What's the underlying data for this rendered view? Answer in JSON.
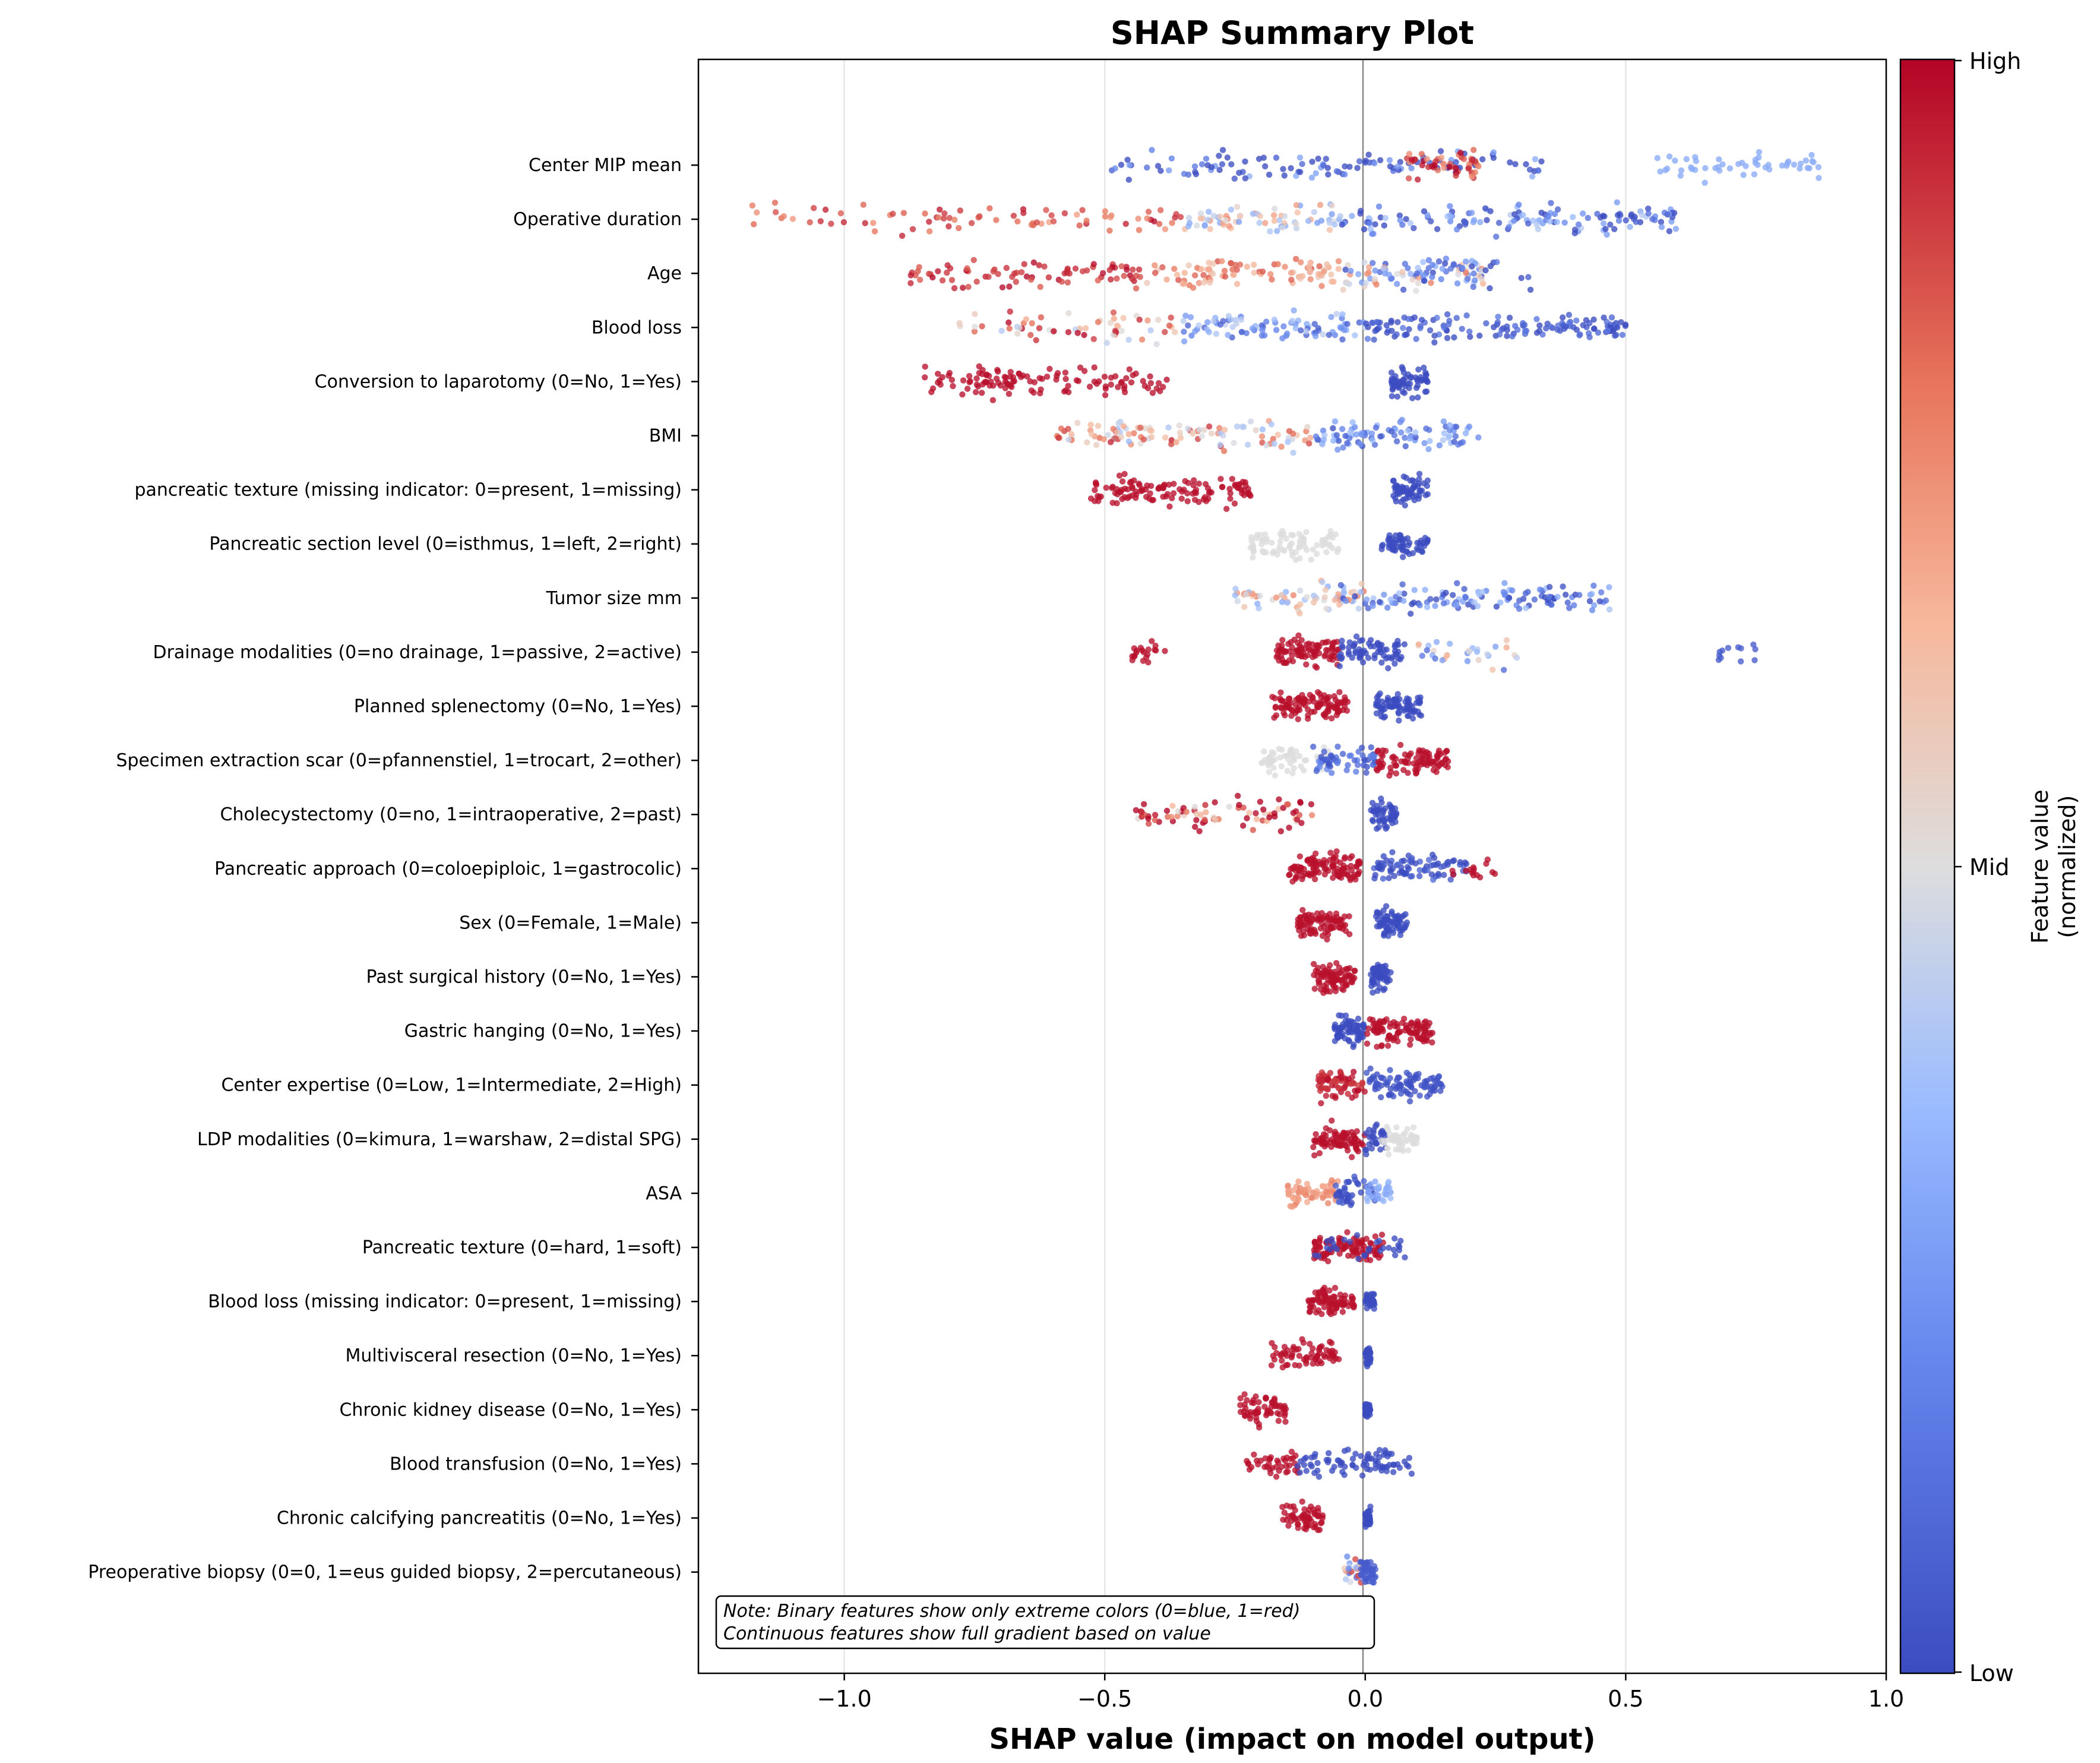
{
  "chart_data": {
    "type": "scatter",
    "title": "SHAP Summary Plot",
    "xlabel": "SHAP value (impact on model output)",
    "xlim": [
      -1.28,
      1.0
    ],
    "xticks": [
      -1.0,
      -0.5,
      0.0,
      0.5,
      1.0
    ],
    "xtick_labels": [
      "−1.0",
      "−0.5",
      "0.0",
      "0.5",
      "1.0"
    ],
    "grid": "vertical",
    "colorbar": {
      "label_line1": "Feature value",
      "label_line2": "(normalized)",
      "ticks": [
        "Low",
        "Mid",
        "High"
      ],
      "colormap": "coolwarm",
      "low_color": "#3b4cc0",
      "mid_color": "#dddddd",
      "high_color": "#b40426"
    },
    "note_lines": [
      "Note: Binary features show only extreme colors (0=blue, 1=red)",
      "Continuous features show full gradient based on value"
    ],
    "features": [
      {
        "name": "Center MIP mean",
        "clusters": [
          [
            -0.49,
            0.34,
            0.02,
            0.3,
            120
          ],
          [
            0.08,
            0.22,
            0.9,
            0.18,
            50
          ],
          [
            0.56,
            0.88,
            0.3,
            0.0,
            50
          ]
        ]
      },
      {
        "name": "Operative duration",
        "clusters": [
          [
            -1.18,
            -0.35,
            0.85,
            0.15,
            80
          ],
          [
            -0.35,
            -0.05,
            0.5,
            0.25,
            70
          ],
          [
            -0.05,
            0.6,
            0.12,
            0.3,
            140
          ]
        ]
      },
      {
        "name": "Age",
        "clusters": [
          [
            -0.88,
            -0.42,
            0.92,
            0.08,
            80
          ],
          [
            -0.42,
            -0.05,
            0.72,
            0.15,
            90
          ],
          [
            -0.05,
            0.23,
            0.4,
            0.4,
            80
          ],
          [
            0.1,
            0.32,
            0.1,
            0.2,
            30
          ]
        ]
      },
      {
        "name": "Blood loss",
        "clusters": [
          [
            -0.78,
            -0.35,
            0.7,
            0.3,
            60
          ],
          [
            -0.35,
            0.0,
            0.25,
            0.2,
            90
          ],
          [
            0.0,
            0.5,
            0.05,
            0.1,
            140
          ]
        ]
      },
      {
        "name": "Conversion to laparotomy (0=No, 1=Yes)",
        "clusters": [
          [
            -0.85,
            -0.38,
            0.98,
            0.0,
            120
          ],
          [
            0.05,
            0.12,
            0.0,
            0.0,
            60
          ]
        ]
      },
      {
        "name": "BMI",
        "clusters": [
          [
            -0.6,
            -0.1,
            0.65,
            0.3,
            110
          ],
          [
            -0.1,
            0.22,
            0.2,
            0.2,
            90
          ]
        ]
      },
      {
        "name": "pancreatic texture (missing indicator: 0=present, 1=missing)",
        "clusters": [
          [
            -0.53,
            -0.22,
            0.98,
            0.0,
            120
          ],
          [
            0.05,
            0.12,
            0.0,
            0.0,
            60
          ]
        ]
      },
      {
        "name": "Pancreatic section level (0=isthmus, 1=left, 2=right)",
        "clusters": [
          [
            -0.22,
            -0.05,
            0.5,
            0.0,
            80
          ],
          [
            0.03,
            0.12,
            0.0,
            0.0,
            60
          ]
        ]
      },
      {
        "name": "Tumor size mm",
        "clusters": [
          [
            -0.25,
            0.0,
            0.55,
            0.25,
            70
          ],
          [
            -0.05,
            0.48,
            0.15,
            0.25,
            120
          ]
        ]
      },
      {
        "name": "Drainage modalities (0=no drainage, 1=passive, 2=active)",
        "clusters": [
          [
            -0.45,
            -0.38,
            0.98,
            0.0,
            20
          ],
          [
            -0.17,
            -0.05,
            0.98,
            0.0,
            90
          ],
          [
            -0.05,
            0.08,
            0.0,
            0.0,
            70
          ],
          [
            0.1,
            0.3,
            0.4,
            0.3,
            30
          ],
          [
            0.66,
            0.75,
            0.05,
            0.0,
            12
          ]
        ]
      },
      {
        "name": "Planned splenectomy (0=No, 1=Yes)",
        "clusters": [
          [
            -0.18,
            -0.03,
            0.98,
            0.0,
            110
          ],
          [
            0.02,
            0.11,
            0.0,
            0.0,
            80
          ]
        ]
      },
      {
        "name": "Specimen extraction scar (0=pfannenstiel, 1=trocart, 2=other)",
        "clusters": [
          [
            -0.2,
            -0.07,
            0.5,
            0.0,
            60
          ],
          [
            -0.1,
            0.02,
            0.1,
            0.1,
            60
          ],
          [
            0.02,
            0.16,
            0.98,
            0.0,
            90
          ]
        ]
      },
      {
        "name": "Cholecystectomy (0=no, 1=intraoperative, 2=past)",
        "clusters": [
          [
            -0.44,
            -0.1,
            0.9,
            0.4,
            80
          ],
          [
            0.01,
            0.06,
            0.0,
            0.0,
            50
          ]
        ]
      },
      {
        "name": "Pancreatic approach (0=coloepiploic, 1=gastrocolic)",
        "clusters": [
          [
            -0.15,
            -0.01,
            0.98,
            0.0,
            110
          ],
          [
            0.0,
            0.2,
            0.0,
            0.1,
            80
          ],
          [
            0.16,
            0.25,
            0.98,
            0.0,
            15
          ]
        ]
      },
      {
        "name": "Sex (0=Female, 1=Male)",
        "clusters": [
          [
            -0.13,
            -0.03,
            0.98,
            0.0,
            90
          ],
          [
            0.02,
            0.08,
            0.0,
            0.0,
            70
          ]
        ]
      },
      {
        "name": "Past surgical history (0=No, 1=Yes)",
        "clusters": [
          [
            -0.1,
            -0.02,
            0.98,
            0.0,
            80
          ],
          [
            0.01,
            0.05,
            0.0,
            0.0,
            60
          ]
        ]
      },
      {
        "name": "Gastric hanging (0=No, 1=Yes)",
        "clusters": [
          [
            -0.06,
            0.0,
            0.0,
            0.0,
            70
          ],
          [
            0.0,
            0.13,
            0.98,
            0.0,
            100
          ]
        ]
      },
      {
        "name": "Center expertise (0=Low, 1=Intermediate, 2=High)",
        "clusters": [
          [
            -0.09,
            0.0,
            0.95,
            0.05,
            70
          ],
          [
            0.0,
            0.15,
            0.02,
            0.02,
            90
          ]
        ]
      },
      {
        "name": "LDP modalities (0=kimura, 1=warshaw, 2=distal SPG)",
        "clusters": [
          [
            -0.1,
            0.0,
            0.98,
            0.0,
            80
          ],
          [
            0.0,
            0.04,
            0.0,
            0.0,
            30
          ],
          [
            0.03,
            0.1,
            0.5,
            0.0,
            50
          ]
        ]
      },
      {
        "name": "ASA",
        "clusters": [
          [
            -0.15,
            -0.05,
            0.72,
            0.05,
            60
          ],
          [
            -0.06,
            0.02,
            0.0,
            0.1,
            40
          ],
          [
            0.0,
            0.05,
            0.3,
            0.05,
            30
          ]
        ]
      },
      {
        "name": "Pancreatic texture (0=hard, 1=soft)",
        "clusters": [
          [
            -0.1,
            0.04,
            0.98,
            0.0,
            100
          ],
          [
            -0.1,
            0.08,
            0.0,
            0.0,
            30
          ]
        ]
      },
      {
        "name": "Blood loss (missing indicator: 0=present, 1=missing)",
        "clusters": [
          [
            -0.11,
            -0.02,
            0.98,
            0.0,
            80
          ],
          [
            0.0,
            0.02,
            0.0,
            0.0,
            40
          ]
        ]
      },
      {
        "name": "Multivisceral resection (0=No, 1=Yes)",
        "clusters": [
          [
            -0.18,
            -0.05,
            0.98,
            0.0,
            70
          ],
          [
            0.0,
            0.01,
            0.0,
            0.0,
            40
          ]
        ]
      },
      {
        "name": "Chronic kidney disease (0=No, 1=Yes)",
        "clusters": [
          [
            -0.24,
            -0.15,
            0.98,
            0.0,
            60
          ],
          [
            0.0,
            0.01,
            0.0,
            0.0,
            40
          ]
        ]
      },
      {
        "name": "Blood transfusion (0=No, 1=Yes)",
        "clusters": [
          [
            -0.23,
            -0.12,
            0.98,
            0.0,
            40
          ],
          [
            -0.13,
            0.09,
            0.0,
            0.0,
            80
          ]
        ]
      },
      {
        "name": "Chronic calcifying pancreatitis (0=No, 1=Yes)",
        "clusters": [
          [
            -0.16,
            -0.08,
            0.98,
            0.0,
            60
          ],
          [
            0.0,
            0.01,
            0.0,
            0.0,
            40
          ]
        ]
      },
      {
        "name": "Preoperative biopsy (0=0, 1=eus guided biopsy, 2=percutaneous)",
        "clusters": [
          [
            -0.04,
            0.0,
            0.5,
            0.4,
            30
          ],
          [
            -0.01,
            0.02,
            0.05,
            0.0,
            40
          ]
        ]
      }
    ]
  }
}
